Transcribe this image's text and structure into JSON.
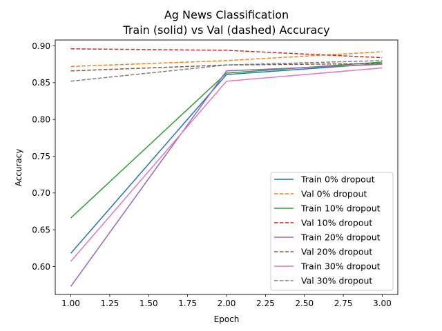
{
  "chart_data": {
    "type": "line",
    "title": "Ag News Classification",
    "subtitle": "Train (solid) vs Val (dashed) Accuracy",
    "xlabel": "Epoch",
    "ylabel": "Accuracy",
    "xlim": [
      0.9,
      3.1
    ],
    "ylim": [
      0.562,
      0.908
    ],
    "x_ticks": [
      1.0,
      1.25,
      1.5,
      1.75,
      2.0,
      2.25,
      2.5,
      2.75,
      3.0
    ],
    "y_ticks": [
      0.6,
      0.65,
      0.7,
      0.75,
      0.8,
      0.85,
      0.9
    ],
    "grid": false,
    "legend_position": "lower-right",
    "x": [
      1,
      2,
      3
    ],
    "series": [
      {
        "name": "Train 0% dropout",
        "color": "#1f77b4",
        "style": "solid",
        "values": [
          0.618,
          0.861,
          0.876
        ]
      },
      {
        "name": "Val 0% dropout",
        "color": "#ff7f0e",
        "style": "dashed",
        "values": [
          0.872,
          0.88,
          0.892
        ]
      },
      {
        "name": "Train 10% dropout",
        "color": "#2ca02c",
        "style": "solid",
        "values": [
          0.666,
          0.863,
          0.878
        ]
      },
      {
        "name": "Val 10% dropout",
        "color": "#d62728",
        "style": "dashed",
        "values": [
          0.896,
          0.894,
          0.884
        ]
      },
      {
        "name": "Train 20% dropout",
        "color": "#9467bd",
        "style": "solid",
        "values": [
          0.573,
          0.866,
          0.875
        ]
      },
      {
        "name": "Val 20% dropout",
        "color": "#8c564b",
        "style": "dashed",
        "values": [
          0.866,
          0.874,
          0.876
        ]
      },
      {
        "name": "Train 30% dropout",
        "color": "#e377c2",
        "style": "solid",
        "values": [
          0.607,
          0.852,
          0.87
        ]
      },
      {
        "name": "Val 30% dropout",
        "color": "#7f7f7f",
        "style": "dashed",
        "values": [
          0.852,
          0.874,
          0.88
        ]
      }
    ]
  }
}
